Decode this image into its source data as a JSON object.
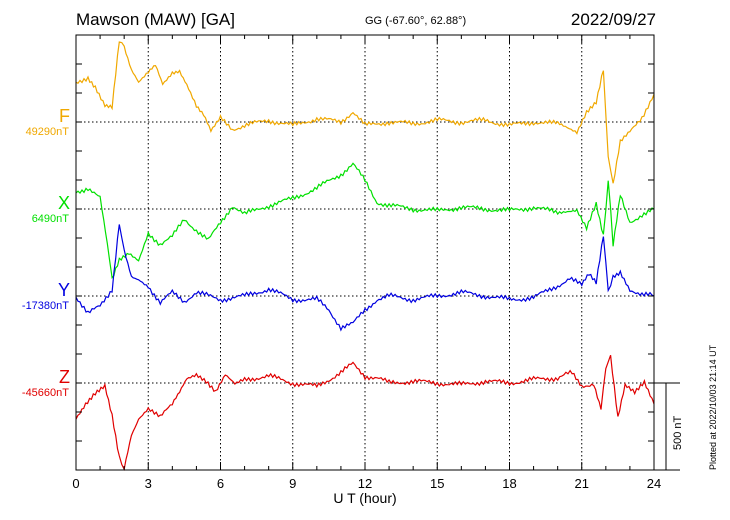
{
  "header": {
    "station": "Mawson (MAW)  [GA]",
    "coords": "GG (-67.60°,  62.88°)",
    "date": "2022/09/27"
  },
  "side_note": "Plotted at 2022/10/03 21:14 UT",
  "chart_data": {
    "type": "line",
    "xlabel": "U T (hour)",
    "xlim": [
      0,
      24
    ],
    "xticks": [
      "0",
      "3",
      "6",
      "9",
      "12",
      "15",
      "18",
      "21",
      "24"
    ],
    "grid": true,
    "scale_bar": {
      "label": "500 nT",
      "value": 500
    },
    "series": [
      {
        "name": "F",
        "baseline": "49290nT",
        "color": "#f0a800",
        "x": [
          0,
          0.5,
          0.8,
          1.2,
          1.5,
          1.8,
          2.0,
          2.3,
          2.6,
          3.0,
          3.3,
          3.6,
          4.0,
          4.3,
          4.6,
          5.0,
          5.3,
          5.6,
          6.0,
          6.5,
          7.0,
          8.0,
          9.0,
          10.0,
          11.0,
          11.5,
          12.0,
          13.0,
          14.0,
          15.0,
          16.0,
          17.0,
          18.0,
          19.0,
          20.0,
          20.8,
          21.2,
          21.6,
          21.9,
          22.1,
          22.3,
          22.6,
          23.0,
          23.5,
          24.0
        ],
        "y": [
          220,
          260,
          200,
          100,
          80,
          460,
          440,
          300,
          220,
          280,
          320,
          220,
          280,
          300,
          220,
          100,
          40,
          -60,
          20,
          -40,
          -20,
          10,
          -20,
          20,
          0,
          60,
          -20,
          0,
          -10,
          10,
          0,
          10,
          -20,
          0,
          -10,
          -60,
          60,
          120,
          300,
          -200,
          -360,
          -120,
          -60,
          30,
          160
        ]
      },
      {
        "name": "X",
        "baseline": "6490nT",
        "color": "#00e000",
        "x": [
          0,
          0.5,
          1.0,
          1.3,
          1.5,
          1.8,
          2.2,
          2.6,
          3.0,
          3.5,
          4.0,
          4.5,
          5.0,
          5.5,
          6.0,
          6.5,
          7.0,
          8.0,
          9.0,
          10.0,
          11.0,
          11.5,
          12.0,
          12.5,
          13.0,
          14.0,
          15.0,
          16.0,
          17.0,
          18.0,
          19.0,
          20.0,
          20.8,
          21.2,
          21.6,
          21.9,
          22.1,
          22.3,
          22.6,
          23.0,
          23.5,
          24.0
        ],
        "y": [
          100,
          120,
          60,
          -200,
          -400,
          -300,
          -260,
          -300,
          -140,
          -200,
          -160,
          -60,
          -120,
          -180,
          -80,
          20,
          -30,
          20,
          60,
          120,
          200,
          260,
          160,
          40,
          20,
          0,
          -10,
          10,
          0,
          -10,
          10,
          -20,
          0,
          -100,
          40,
          -150,
          160,
          -200,
          80,
          -80,
          -30,
          0
        ]
      },
      {
        "name": "Y",
        "baseline": "-17380nT",
        "color": "#0000e0",
        "x": [
          0,
          0.5,
          1.0,
          1.5,
          1.8,
          2.0,
          2.3,
          2.6,
          3.0,
          3.5,
          4.0,
          4.5,
          5.0,
          6.0,
          7.0,
          8.0,
          9.0,
          10.0,
          10.5,
          11.0,
          11.5,
          12.0,
          12.5,
          13.0,
          14.0,
          15.0,
          16.0,
          17.0,
          18.0,
          19.0,
          20.0,
          20.5,
          21.0,
          21.3,
          21.6,
          21.9,
          22.1,
          22.3,
          22.6,
          23.0,
          23.5,
          24.0
        ],
        "y": [
          0,
          -100,
          -60,
          40,
          420,
          260,
          120,
          100,
          60,
          -40,
          20,
          -30,
          20,
          -20,
          0,
          40,
          -20,
          -20,
          -80,
          -180,
          -160,
          -80,
          -20,
          0,
          -20,
          0,
          20,
          0,
          -20,
          -10,
          60,
          100,
          60,
          120,
          80,
          360,
          20,
          120,
          140,
          40,
          10,
          0
        ]
      },
      {
        "name": "Z",
        "baseline": "-45660nT",
        "color": "#e00000",
        "x": [
          0,
          0.4,
          0.8,
          1.2,
          1.5,
          1.8,
          2.0,
          2.3,
          2.6,
          3.0,
          3.5,
          4.0,
          4.3,
          4.6,
          5.0,
          5.4,
          5.8,
          6.2,
          6.6,
          7.0,
          8.0,
          9.0,
          10.0,
          10.5,
          11.0,
          11.5,
          12.0,
          12.5,
          13.0,
          14.0,
          15.0,
          16.0,
          17.0,
          18.0,
          19.0,
          20.0,
          20.6,
          21.0,
          21.5,
          21.8,
          22.0,
          22.2,
          22.5,
          22.8,
          23.2,
          23.6,
          24.0
        ],
        "y": [
          -200,
          -120,
          -60,
          -20,
          -180,
          -420,
          -500,
          -300,
          -200,
          -140,
          -200,
          -120,
          -60,
          20,
          40,
          0,
          -60,
          40,
          -10,
          20,
          40,
          0,
          -20,
          20,
          60,
          110,
          40,
          30,
          0,
          10,
          0,
          -10,
          10,
          0,
          20,
          30,
          60,
          -20,
          0,
          -140,
          80,
          160,
          -200,
          -20,
          -60,
          0,
          -120
        ]
      }
    ]
  }
}
